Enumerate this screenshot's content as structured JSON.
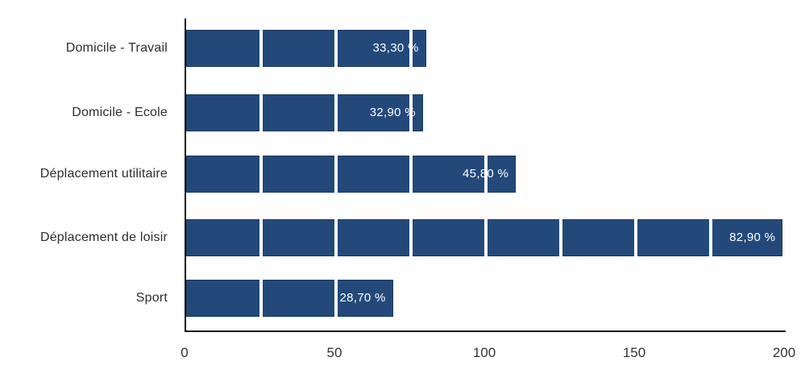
{
  "chart_data": {
    "type": "bar",
    "orientation": "horizontal",
    "title": "",
    "xlabel": "",
    "ylabel": "",
    "categories": [
      "Domicile - Travail",
      "Domicile - Ecole",
      "Déplacement utilitaire",
      "Déplacement de loisir",
      "Sport"
    ],
    "values_percent": [
      33.3,
      32.9,
      45.8,
      82.9,
      28.7
    ],
    "bar_labels": [
      "33,30 %",
      "32,90 %",
      "45,80 %",
      "82,90 %",
      "28,70 %"
    ],
    "bar_axis_values": [
      80,
      79,
      110,
      199,
      69
    ],
    "xlim": [
      0,
      200
    ],
    "x_ticks": [
      0,
      50,
      100,
      150,
      200
    ],
    "x_tick_labels": [
      "0",
      "50",
      "100",
      "150",
      "200"
    ],
    "gridlines_at": [
      25,
      50,
      75,
      100,
      125,
      150,
      175
    ],
    "grid_visible_as": "white vertical lines across bars",
    "legend": "none",
    "colors": {
      "bar_fill": "#23497A",
      "bar_border": "#17385F",
      "bar_label_text": "#FFFFFF",
      "gridline": "#FFFFFF",
      "axis_line": "#151515",
      "category_text": "#2E2E2E",
      "tick_text": "#333333",
      "background": "#FFFFFF"
    }
  }
}
